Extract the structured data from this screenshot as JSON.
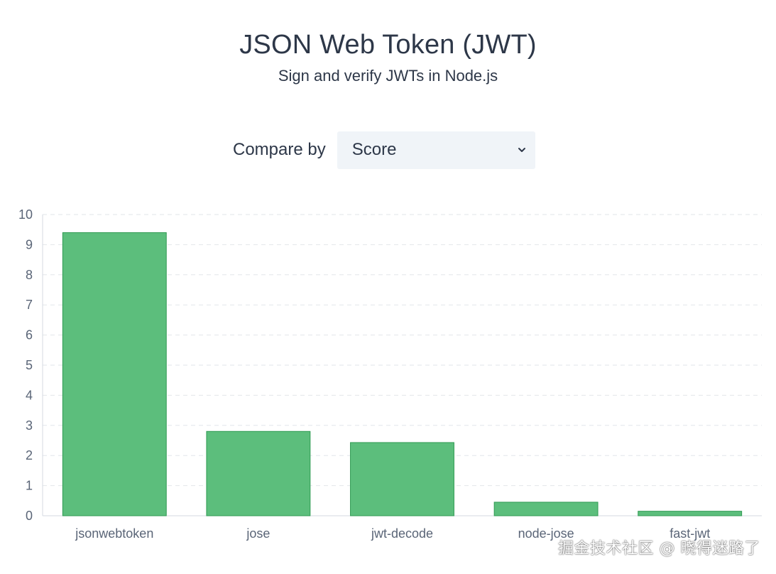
{
  "header": {
    "title": "JSON Web Token (JWT)",
    "subtitle": "Sign and verify JWTs in Node.js"
  },
  "compare": {
    "label": "Compare by",
    "selected": "Score",
    "icon": "chevron-down-icon"
  },
  "colors": {
    "bar_fill": "#5cbe7c",
    "bar_stroke": "#2f9a52",
    "grid": "#e2e6ea",
    "axis": "#d5dae0"
  },
  "chart_data": {
    "type": "bar",
    "categories": [
      "jsonwebtoken",
      "jose",
      "jwt-decode",
      "node-jose",
      "fast-jwt"
    ],
    "values": [
      9.4,
      2.8,
      2.43,
      0.45,
      0.15
    ],
    "yticks": [
      "0",
      "1",
      "2",
      "3",
      "4",
      "5",
      "6",
      "7",
      "8",
      "9",
      "10"
    ],
    "ylim": [
      0,
      10
    ],
    "grid": true,
    "grid_style": "dashed",
    "legend": "none"
  },
  "watermark": "掘金技术社区 @ 晓得迷路了"
}
